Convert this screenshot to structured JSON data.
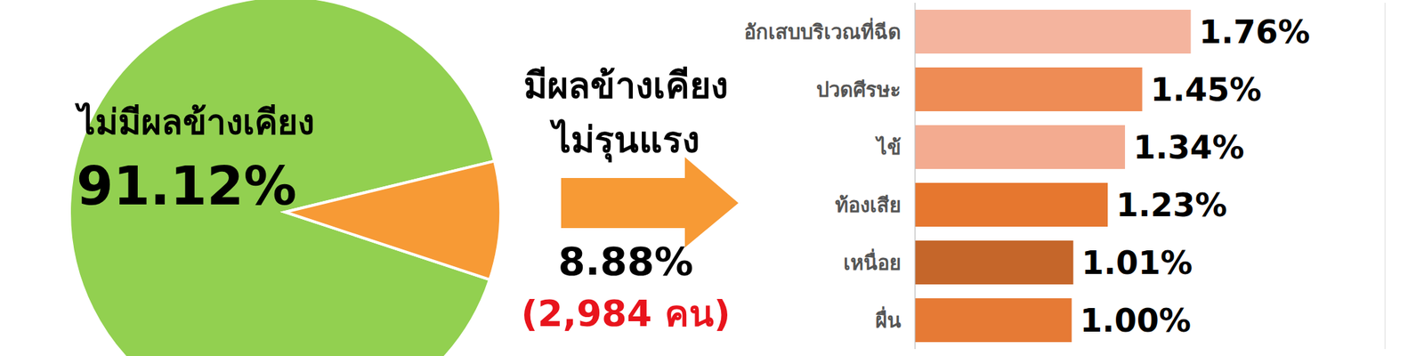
{
  "chart_data": [
    {
      "type": "pie",
      "categories": [
        "ไม่มีผลข้างเคียง",
        "มีผลข้างเคียง ไม่รุนแรง"
      ],
      "values": [
        91.12,
        8.88
      ],
      "value_labels": [
        "91.12%",
        "8.88%"
      ],
      "colors": [
        "#92d050",
        "#f79a35"
      ],
      "annotations": [
        "(2,984 คน)"
      ]
    },
    {
      "type": "bar",
      "orientation": "horizontal",
      "categories": [
        "อักเสบบริเวณที่ฉีด",
        "ปวดศีรษะ",
        "ไข้",
        "ท้องเสีย",
        "เหนื่อย",
        "ผื่น"
      ],
      "values": [
        1.76,
        1.45,
        1.34,
        1.23,
        1.01,
        1.0
      ],
      "value_labels": [
        "1.76%",
        "1.45%",
        "1.34%",
        "1.23%",
        "1.01%",
        "1.00%"
      ],
      "colors": [
        "#f4b49e",
        "#ee8c55",
        "#f3ab90",
        "#e6772f",
        "#c5662a",
        "#e67a35"
      ],
      "xlim": [
        0,
        3
      ],
      "xticks": [
        0,
        1,
        2,
        3
      ],
      "grid": true,
      "tick_labels": "y",
      "data_labels": true
    }
  ]
}
